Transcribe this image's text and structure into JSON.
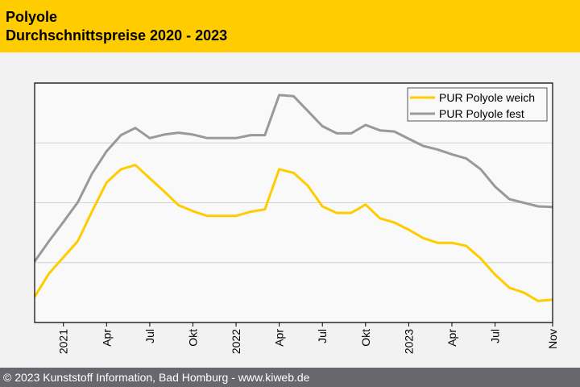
{
  "header": {
    "title": "Polyole",
    "subtitle": "Durchschnittspreise 2020 - 2023"
  },
  "footer": {
    "text": "© 2023 Kunststoff Information, Bad Homburg - www.kiweb.de"
  },
  "colors": {
    "weich": "#ffcc00",
    "fest": "#999999",
    "header": "#ffcc00",
    "footer": "#68686c"
  },
  "chart_data": {
    "type": "line",
    "title": "Polyole Durchschnittspreise 2020 - 2023",
    "xlabel": "",
    "ylabel": "",
    "x_start": "2020-11",
    "x_end": "2023-11",
    "x_unit": "month",
    "x_ticks": [
      {
        "month_index": 2,
        "label": "2021"
      },
      {
        "month_index": 5,
        "label": "Apr"
      },
      {
        "month_index": 8,
        "label": "Jul"
      },
      {
        "month_index": 11,
        "label": "Okt"
      },
      {
        "month_index": 14,
        "label": "2022"
      },
      {
        "month_index": 17,
        "label": "Apr"
      },
      {
        "month_index": 20,
        "label": "Jul"
      },
      {
        "month_index": 23,
        "label": "Okt"
      },
      {
        "month_index": 26,
        "label": "2023"
      },
      {
        "month_index": 29,
        "label": "Apr"
      },
      {
        "month_index": 32,
        "label": "Jul"
      },
      {
        "month_index": 36,
        "label": "Nov"
      }
    ],
    "ylim": [
      0,
      4
    ],
    "y_gridlines": [
      1,
      2,
      3
    ],
    "y_note": "relative units, no y-axis labels shown",
    "grid": true,
    "legend_position": "top-right",
    "series": [
      {
        "name": "PUR Polyole weich",
        "color": "#ffcc00",
        "values": [
          0.43,
          0.82,
          1.09,
          1.36,
          1.86,
          2.34,
          2.56,
          2.63,
          2.41,
          2.19,
          1.96,
          1.86,
          1.78,
          1.78,
          1.78,
          1.85,
          1.89,
          2.56,
          2.5,
          2.28,
          1.94,
          1.83,
          1.83,
          1.97,
          1.74,
          1.67,
          1.55,
          1.41,
          1.33,
          1.33,
          1.28,
          1.07,
          0.8,
          0.58,
          0.5,
          0.36,
          0.38
        ]
      },
      {
        "name": "PUR Polyole fest",
        "color": "#999999",
        "values": [
          1.02,
          1.36,
          1.68,
          2.01,
          2.49,
          2.86,
          3.13,
          3.25,
          3.08,
          3.14,
          3.17,
          3.14,
          3.08,
          3.08,
          3.08,
          3.13,
          3.13,
          3.8,
          3.78,
          3.53,
          3.28,
          3.16,
          3.16,
          3.3,
          3.21,
          3.19,
          3.07,
          2.95,
          2.89,
          2.81,
          2.74,
          2.56,
          2.27,
          2.06,
          2.0,
          1.94,
          1.93
        ]
      }
    ]
  }
}
